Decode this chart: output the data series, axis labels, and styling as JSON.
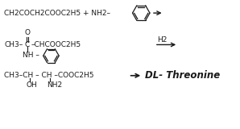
{
  "bg_color": "#ffffff",
  "text_color": "#1a1a1a",
  "line1_text": "CH2COCH2COOC2H5 + NH2",
  "line2_ch3": "CH3",
  "line2_C": "C",
  "line2_rest": "CHCOOC2H5",
  "line2_O": "O",
  "line2_NH": "NH",
  "line2_reagent": "H2",
  "line3_text": "CH3",
  "line3_ch": "CH",
  "line3_ch2": "CH",
  "line3_rest": "COOC2H5",
  "line3_OH": "OH",
  "line3_NH2": "NH2",
  "line3_product": "DL- Threonine",
  "fs": 6.5,
  "fs_product": 8.5
}
